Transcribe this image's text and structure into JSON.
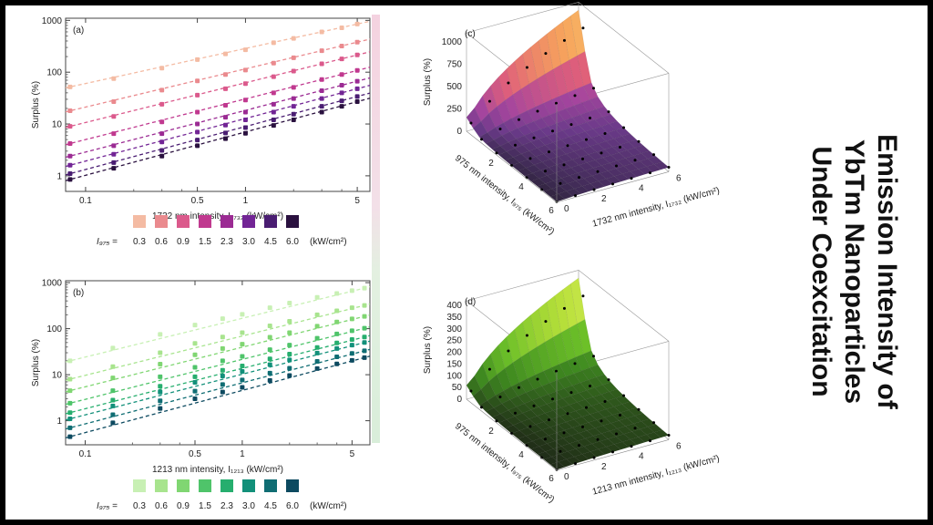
{
  "title": {
    "lines": [
      "Emission Intensity of",
      "YbTm Nanoparticles",
      "Under Coexcitation"
    ]
  },
  "legend": {
    "prefix": "I₉₇₅ =",
    "unit": "(kW/cm²)",
    "values": [
      "0.3",
      "0.6",
      "0.9",
      "1.5",
      "2.3",
      "3.0",
      "4.5",
      "6.0"
    ],
    "colors_a": [
      "#f4bba3",
      "#ea8a8e",
      "#db5a8c",
      "#c0398f",
      "#9b2b93",
      "#722595",
      "#4a1d72",
      "#2a113f"
    ],
    "colors_b": [
      "#c8f0b4",
      "#a8e48e",
      "#80d672",
      "#4fc46a",
      "#26ae6e",
      "#12907a",
      "#0f6d73",
      "#0d4a60"
    ]
  },
  "chart_data": [
    {
      "id": "a",
      "panel_label": "(a)",
      "type": "scatter",
      "xscale": "log",
      "yscale": "log",
      "xlim": [
        0.075,
        6.0
      ],
      "ylim": [
        0.5,
        1100
      ],
      "xticks": [
        "0.1",
        "0.5",
        "1",
        "5"
      ],
      "yticks": [
        "1",
        "10",
        "100",
        "1000"
      ],
      "xlabel": "1732 nm intensity, I₁₇₃₂ (kW/cm²)",
      "ylabel": "Surplus (%)",
      "x": [
        0.08,
        0.15,
        0.3,
        0.5,
        0.75,
        1.0,
        1.5,
        2.0,
        3.0,
        4.0,
        5.0
      ],
      "series": [
        {
          "name": "0.3",
          "values": [
            52,
            75,
            120,
            175,
            225,
            270,
            370,
            450,
            600,
            720,
            850
          ]
        },
        {
          "name": "0.6",
          "values": [
            18,
            27,
            45,
            68,
            90,
            110,
            150,
            190,
            260,
            320,
            380
          ]
        },
        {
          "name": "0.9",
          "values": [
            9,
            14,
            24,
            36,
            48,
            60,
            82,
            105,
            145,
            180,
            215
          ]
        },
        {
          "name": "1.5",
          "values": [
            4.2,
            6.5,
            11,
            17,
            23,
            29,
            40,
            51,
            72,
            90,
            108
          ]
        },
        {
          "name": "2.3",
          "values": [
            2.4,
            3.8,
            6.5,
            10,
            13.5,
            17,
            24,
            31,
            44,
            56,
            67
          ]
        },
        {
          "name": "3.0",
          "values": [
            1.6,
            2.6,
            4.5,
            7,
            9.5,
            12,
            17,
            22,
            31,
            40,
            48
          ]
        },
        {
          "name": "4.5",
          "values": [
            1.1,
            1.8,
            3.1,
            4.9,
            6.7,
            8.5,
            12,
            15.5,
            22,
            28,
            34
          ]
        },
        {
          "name": "6.0",
          "values": [
            0.85,
            1.4,
            2.4,
            3.8,
            5.2,
            6.6,
            9.4,
            12,
            17,
            22,
            27
          ]
        }
      ]
    },
    {
      "id": "b",
      "panel_label": "(b)",
      "type": "scatter",
      "xscale": "log",
      "yscale": "log",
      "xlim": [
        0.075,
        6.5
      ],
      "ylim": [
        0.3,
        1100
      ],
      "xticks": [
        "0.1",
        "0.5",
        "1",
        "5"
      ],
      "yticks": [
        "1",
        "10",
        "100",
        "1000"
      ],
      "xlabel": "1213 nm intensity, I₁₂₁₃ (kW/cm²)",
      "ylabel": "Surplus (%)",
      "x": [
        0.08,
        0.15,
        0.3,
        0.5,
        0.75,
        1.0,
        1.5,
        2.0,
        3.0,
        4.0,
        5.0,
        6.0
      ],
      "series": [
        {
          "name": "0.3",
          "values": [
            20,
            38,
            75,
            120,
            165,
            205,
            285,
            360,
            480,
            580,
            670,
            760
          ]
        },
        {
          "name": "0.6",
          "values": [
            8,
            15,
            30,
            48,
            66,
            82,
            115,
            145,
            200,
            245,
            285,
            320
          ]
        },
        {
          "name": "0.9",
          "values": [
            4.5,
            8.5,
            17,
            27,
            37,
            46,
            65,
            82,
            113,
            140,
            163,
            185
          ]
        },
        {
          "name": "1.5",
          "values": [
            2.4,
            4.5,
            9,
            14.5,
            20,
            25,
            35,
            44,
            62,
            77,
            90,
            102
          ]
        },
        {
          "name": "2.3",
          "values": [
            1.5,
            2.8,
            5.6,
            9,
            12.5,
            15.5,
            22,
            28,
            39,
            49,
            58,
            66
          ]
        },
        {
          "name": "3.0",
          "values": [
            1.1,
            2.1,
            4.2,
            6.8,
            9.4,
            11.8,
            16.5,
            21,
            29.5,
            37,
            44,
            50
          ]
        },
        {
          "name": "4.5",
          "values": [
            0.7,
            1.35,
            2.7,
            4.4,
            6.1,
            7.7,
            10.8,
            13.8,
            19.5,
            24.5,
            29,
            33
          ]
        },
        {
          "name": "6.0",
          "values": [
            0.45,
            0.9,
            1.85,
            3.0,
            4.2,
            5.3,
            7.5,
            9.6,
            13.6,
            17.2,
            20.5,
            23.5
          ]
        }
      ]
    },
    {
      "id": "c",
      "panel_label": "(c)",
      "type": "surface",
      "zlabel": "Surplus (%)",
      "zticks": [
        "0",
        "250",
        "500",
        "750",
        "1000"
      ],
      "xlabel": "975 nm intensity, I₉₇₅ (kW/cm²)",
      "xticks": [
        "2",
        "4",
        "6"
      ],
      "ylabel": "1732 nm intensity, I₁₇₃₂ (kW/cm²)",
      "yticks": [
        "0",
        "2",
        "4",
        "6"
      ],
      "zmax": 1100,
      "colors": [
        "#1a1a1a",
        "#3d2a52",
        "#6b3a8a",
        "#a5459e",
        "#e0607a",
        "#f7a35c",
        "#f9e37a"
      ]
    },
    {
      "id": "d",
      "panel_label": "(d)",
      "type": "surface",
      "zlabel": "Surplus (%)",
      "zticks": [
        "0",
        "50",
        "100",
        "150",
        "200",
        "250",
        "300",
        "350",
        "400"
      ],
      "xlabel": "975 nm intensity, I₉₇₅ (kW/cm²)",
      "xticks": [
        "2",
        "4",
        "6"
      ],
      "ylabel": "1213 nm intensity, I₁₂₁₃ (kW/cm²)",
      "yticks": [
        "0",
        "2",
        "4",
        "6"
      ],
      "zmax": 420,
      "colors": [
        "#1b1b1b",
        "#223318",
        "#2f5a1c",
        "#3f8a20",
        "#6cbf28",
        "#b8e03a",
        "#f2f77a"
      ]
    }
  ]
}
